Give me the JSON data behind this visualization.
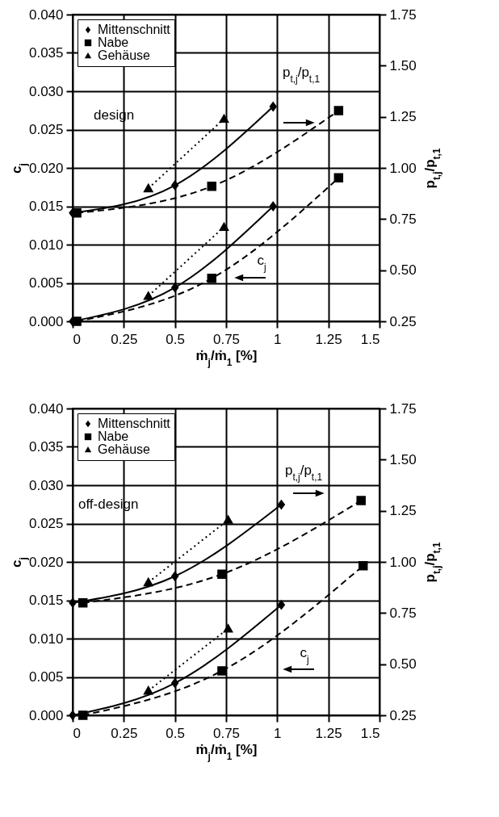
{
  "chart_data": [
    {
      "type": "line",
      "xlabel": "ṁ$_{j}$/ṁ$_{1}$ [%]",
      "ylabel": "c$_{j}$",
      "y2label": "p$_{t,j}$/p$_{t,1}$",
      "xlim": [
        0,
        1.5
      ],
      "xticks": [
        0,
        0.25,
        0.5,
        0.75,
        1,
        1.25,
        1.5
      ],
      "ylim": [
        0,
        0.04
      ],
      "yticks": [
        {
          "value": 0,
          "label": "0.000"
        },
        {
          "value": 0.005,
          "label": "0.005"
        },
        {
          "value": 0.01,
          "label": "0.010"
        },
        {
          "value": 0.015,
          "label": "0.015"
        },
        {
          "value": 0.02,
          "label": "0.020"
        },
        {
          "value": 0.025,
          "label": "0.025"
        },
        {
          "value": 0.03,
          "label": "0.030"
        },
        {
          "value": 0.035,
          "label": "0.035"
        },
        {
          "value": 0.04,
          "label": "0.040"
        }
      ],
      "y2lim": [
        0.25,
        1.75
      ],
      "y2ticks": [
        0.25,
        {
          "value": 0.5,
          "label": "0.50"
        },
        0.75,
        {
          "value": 1,
          "label": "1.00"
        },
        1.25,
        {
          "value": 1.5,
          "label": "1.50"
        },
        1.75
      ],
      "grid": true,
      "legend": "top left",
      "annotations": [
        "design",
        "p$_{t,j}$/p$_{t,1}$",
        "c$_{j}$"
      ],
      "series": [
        {
          "name": "Mittenschnitt",
          "color": "#000000",
          "marker": "diamond",
          "line_style": "solid",
          "x": [
            0,
            0.5,
            0.98
          ],
          "values": [
            0,
            0.0044,
            0.015
          ]
        },
        {
          "name": "Nabe",
          "color": "#000000",
          "marker": "square",
          "line_style": "dashed",
          "x": [
            0.02,
            0.68,
            1.3
          ],
          "values": [
            0,
            0.0056,
            0.0187
          ]
        },
        {
          "name": "Gehäuse",
          "color": "#000000",
          "marker": "triangle",
          "line_style": "dotted",
          "x": [
            0.37,
            0.74
          ],
          "values": [
            0.0033,
            0.0123
          ]
        },
        {
          "color": "#000000",
          "marker": "diamond",
          "line_style": "solid",
          "axis": "y2",
          "x": [
            0,
            0.5,
            0.98
          ],
          "values": [
            0.78,
            0.915,
            1.3
          ]
        },
        {
          "color": "#000000",
          "marker": "square",
          "line_style": "dashed",
          "axis": "y2",
          "x": [
            0.02,
            0.68,
            1.3
          ],
          "values": [
            0.78,
            0.91,
            1.28
          ]
        },
        {
          "color": "#000000",
          "marker": "triangle",
          "line_style": "dotted",
          "axis": "y2",
          "x": [
            0.37,
            0.74
          ],
          "values": [
            0.9,
            1.24
          ]
        }
      ]
    },
    {
      "type": "line",
      "xlabel": "ṁ$_{j}$/ṁ$_{1}$ [%]",
      "ylabel": "c$_{j}$",
      "y2label": "p$_{t,j}$/p$_{t,1}$",
      "xlim": [
        0,
        1.5
      ],
      "xticks": [
        0,
        0.25,
        0.5,
        0.75,
        1,
        1.25,
        1.5
      ],
      "ylim": [
        0,
        0.04
      ],
      "yticks": [
        {
          "value": 0,
          "label": "0.000"
        },
        {
          "value": 0.005,
          "label": "0.005"
        },
        {
          "value": 0.01,
          "label": "0.010"
        },
        {
          "value": 0.015,
          "label": "0.015"
        },
        {
          "value": 0.02,
          "label": "0.020"
        },
        {
          "value": 0.025,
          "label": "0.025"
        },
        {
          "value": 0.03,
          "label": "0.030"
        },
        {
          "value": 0.035,
          "label": "0.035"
        },
        {
          "value": 0.04,
          "label": "0.040"
        }
      ],
      "y2lim": [
        0.25,
        1.75
      ],
      "y2ticks": [
        0.25,
        {
          "value": 0.5,
          "label": "0.50"
        },
        0.75,
        {
          "value": 1,
          "label": "1.00"
        },
        1.25,
        {
          "value": 1.5,
          "label": "1.50"
        },
        1.75
      ],
      "grid": true,
      "legend": "top left",
      "annotations": [
        "off-design",
        "p$_{t,j}$/p$_{t,1}$",
        "c$_{j}$"
      ],
      "series": [
        {
          "name": "Mittenschnitt",
          "color": "#000000",
          "marker": "diamond",
          "line_style": "solid",
          "x": [
            0,
            0.5,
            1.02
          ],
          "values": [
            0,
            0.0042,
            0.0144
          ]
        },
        {
          "name": "Nabe",
          "color": "#000000",
          "marker": "square",
          "line_style": "dashed",
          "x": [
            0.05,
            0.73,
            1.42
          ],
          "values": [
            0,
            0.0058,
            0.0195
          ]
        },
        {
          "name": "Gehäuse",
          "color": "#000000",
          "marker": "triangle",
          "line_style": "dotted",
          "x": [
            0.37,
            0.76
          ],
          "values": [
            0.0032,
            0.0113
          ]
        },
        {
          "color": "#000000",
          "marker": "diamond",
          "line_style": "solid",
          "axis": "y2",
          "x": [
            0,
            0.5,
            1.02
          ],
          "values": [
            0.8,
            0.93,
            1.28
          ]
        },
        {
          "color": "#000000",
          "marker": "square",
          "line_style": "dashed",
          "axis": "y2",
          "x": [
            0.05,
            0.73,
            1.41
          ],
          "values": [
            0.8,
            0.94,
            1.3
          ]
        },
        {
          "color": "#000000",
          "marker": "triangle",
          "line_style": "dotted",
          "axis": "y2",
          "x": [
            0.37,
            0.76
          ],
          "values": [
            0.9,
            1.205
          ]
        }
      ]
    }
  ]
}
